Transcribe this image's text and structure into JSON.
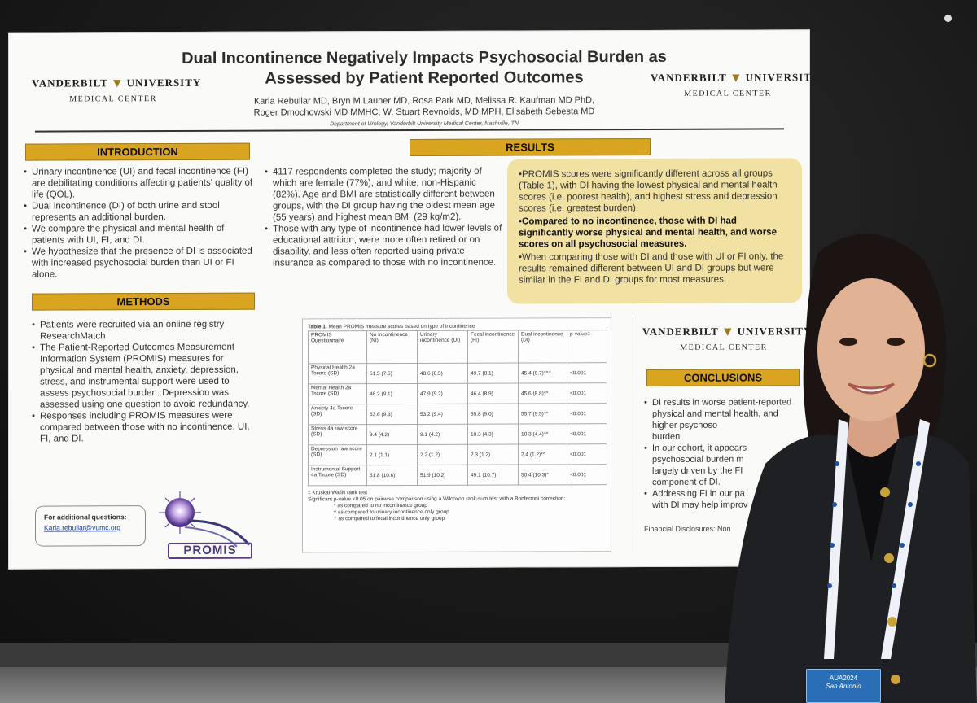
{
  "poster": {
    "title": "Dual Incontinence Negatively Impacts Psychosocial Burden as Assessed by Patient Reported Outcomes",
    "authors_line1": "Karla Rebullar MD, Bryn M Launer MD, Rosa Park MD, Melissa R. Kaufman MD PhD,",
    "authors_line2": "Roger Dmochowski MD MMHC, W. Stuart Reynolds, MD MPH, Elisabeth Sebesta MD",
    "department": "Department of Urology, Vanderbilt University Medical Center, Nashville, TN",
    "logo": {
      "left_word": "VANDERBILT",
      "right_word": "UNIVERSITY",
      "subtitle": "MEDICAL CENTER"
    },
    "introduction": {
      "header": "INTRODUCTION",
      "bullets": [
        "Urinary incontinence (UI) and fecal incontinence (FI) are debilitating conditions affecting patients' quality of life (QOL).",
        "Dual incontinence (DI) of both urine and stool represents an additional burden.",
        "We compare the physical and mental health of patients with UI, FI, and DI.",
        "We hypothesize that the presence of DI is associated with increased psychosocial burden than UI or FI alone."
      ]
    },
    "methods": {
      "header": "METHODS",
      "bullets": [
        "Patients were recruited via an online registry ResearchMatch",
        "The Patient-Reported Outcomes Measurement Information System (PROMIS) measures for physical and mental health, anxiety, depression, stress, and instrumental support were used to assess psychosocial burden. Depression was assessed using one question to avoid redundancy.",
        "Responses including PROMIS measures were compared between those with no incontinence, UI, FI, and DI."
      ]
    },
    "contact": {
      "question": "For additional questions:",
      "email": "Karla.rebullar@vumc.org"
    },
    "promis_logo": "PROMIS",
    "results": {
      "header": "RESULTS",
      "bullets": [
        "4117 respondents completed the study; majority of which are female (77%), and white, non-Hispanic (82%). Age and BMI are statistically different between groups, with the DI group having the oldest mean age (55 years) and highest mean BMI (29 kg/m2).",
        "Those with any type of incontinence had lower levels of educational attrition, were more often retired or on disability, and less often reported using private insurance as compared to those with no incontinence."
      ],
      "box": {
        "p1": "PROMIS scores were significantly different across all groups (Table 1), with DI having the lowest physical and mental health scores (i.e. poorest health), and highest stress and depression scores (i.e. greatest burden).",
        "p2": "Compared to no incontinence, those with DI had significantly worse physical and mental health, and worse scores on all psychosocial measures.",
        "p3": "When comparing those with DI and those with UI or FI only, the results remained different between UI and DI groups but were similar in the FI and DI groups for most measures."
      }
    },
    "table": {
      "caption_bold": "Table 1.",
      "caption": " Mean PROMIS measure scores based on type of incontinence",
      "headers": [
        "PROMIS Questionnaire",
        "No Incontinence (NI)",
        "Urinary incontinence (UI)",
        "Fecal incontinence (FI)",
        "Dual incontinence (DI)",
        "p-value‡"
      ],
      "rows": [
        [
          "Physical Health 2a Tscore (SD)",
          "51.5 (7.5)",
          "48.6 (8.5)",
          "49.7 (8.1)",
          "45.4 (8.7)*^†",
          "<0.001"
        ],
        [
          "Mental Health 2a Tscore (SD)",
          "48.2 (9.1)",
          "47.9 (9.2)",
          "46.4 (8.9)",
          "45.6 (8.8)*^",
          "<0.001"
        ],
        [
          "Anxiety 4a Tscore (SD)",
          "53.6 (9.3)",
          "53.2 (9.4)",
          "55.8 (9.0)",
          "55.7 (9.5)*^",
          "<0.001"
        ],
        [
          "Stress 4a raw score (SD)",
          "9.4 (4.2)",
          "9.1 (4.2)",
          "10.3 (4.3)",
          "10.3 (4.4)*^",
          "<0.001"
        ],
        [
          "Depression raw score (SD)",
          "2.1 (1.1)",
          "2.2 (1.2)",
          "2.3 (1.2)",
          "2.4 (1.2)*^",
          "<0.001"
        ],
        [
          "Instrumental Support 4a Tscore (SD)",
          "51.8 (10.6)",
          "51.9 (10.2)",
          "49.1 (10.7)",
          "50.4 (10.3)*",
          "<0.001"
        ]
      ],
      "note1": "‡ Kruskal-Wallis rank test",
      "note2": "Significant p-value <0.05 on pairwise comparison using a Wilcoxon rank-sum test with a Bonferroni correction:",
      "note3": "* as compared to no incontinence group",
      "note4": "^ as compared to urinary incontinence only group",
      "note5": "† as compared to fecal incontinence only group"
    },
    "conclusions": {
      "header": "CONCLUSIONS",
      "bullets": [
        "DI results in worse patient-reported physical and mental health, and higher psychoso",
        "burden.",
        "In our cohort, it appears",
        "psychosocial burden m",
        "largely driven by the FI",
        "component of DI.",
        "Addressing FI in our pa",
        "with DI may help improv"
      ],
      "disclosures": "Financial Disclosures: Non"
    }
  },
  "badge": {
    "event": "AUA2024",
    "city": "San Antonio"
  }
}
